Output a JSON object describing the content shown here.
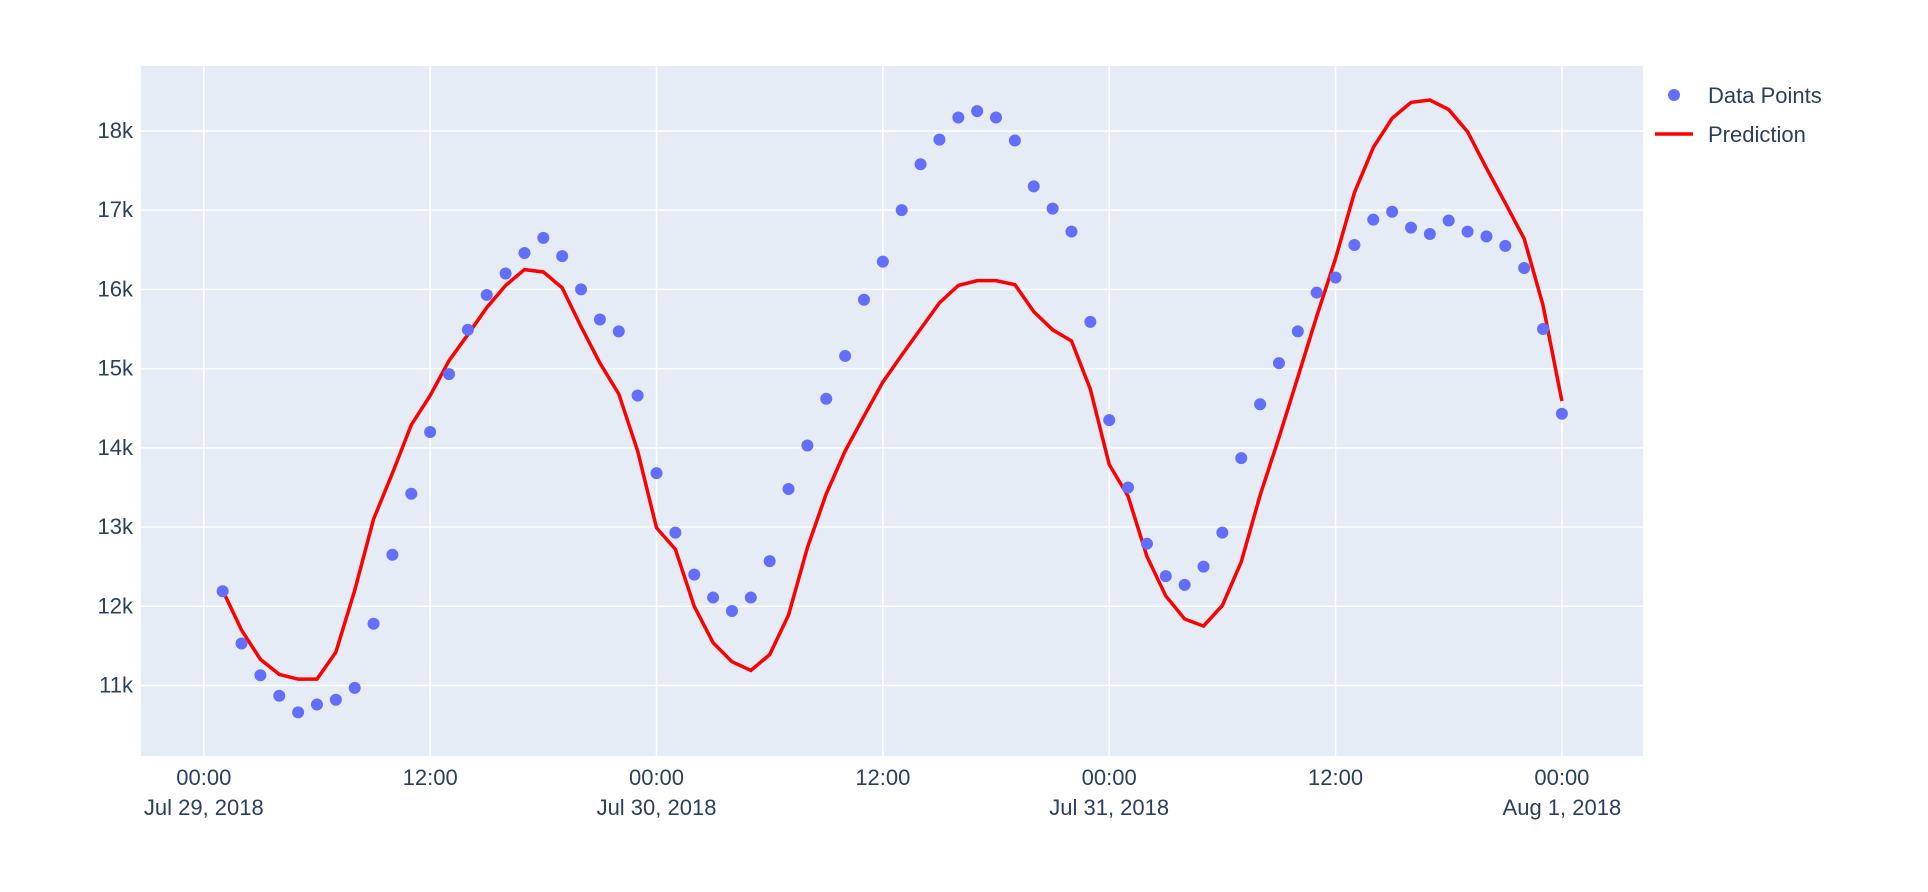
{
  "chart_data": {
    "type": "scatter+line",
    "title": "",
    "xlabel": "",
    "ylabel": "",
    "x_start": "2018-07-29 01:00",
    "x_step_hours": 1,
    "xlim_hours_from_jul29": [
      -3.33,
      76.3
    ],
    "ylim": [
      10110,
      18820
    ],
    "grid": true,
    "legend_placement": "top-right",
    "x_ticks": [
      {
        "h": 0,
        "l1": "00:00",
        "l2": "Jul 29, 2018"
      },
      {
        "h": 12,
        "l1": "12:00",
        "l2": ""
      },
      {
        "h": 24,
        "l1": "00:00",
        "l2": "Jul 30, 2018"
      },
      {
        "h": 36,
        "l1": "12:00",
        "l2": ""
      },
      {
        "h": 48,
        "l1": "00:00",
        "l2": "Jul 31, 2018"
      },
      {
        "h": 60,
        "l1": "12:00",
        "l2": ""
      },
      {
        "h": 72,
        "l1": "00:00",
        "l2": "Aug 1, 2018"
      }
    ],
    "y_ticks": [
      {
        "v": 11000,
        "l": "11k"
      },
      {
        "v": 12000,
        "l": "12k"
      },
      {
        "v": 13000,
        "l": "13k"
      },
      {
        "v": 14000,
        "l": "14k"
      },
      {
        "v": 15000,
        "l": "15k"
      },
      {
        "v": 16000,
        "l": "16k"
      },
      {
        "v": 17000,
        "l": "17k"
      },
      {
        "v": 18000,
        "l": "18k"
      }
    ],
    "series": [
      {
        "name": "Data Points",
        "mode": "markers",
        "color": "#636efa",
        "values": [
          12190,
          11530,
          11130,
          10870,
          10660,
          10760,
          10820,
          10970,
          11780,
          12650,
          13420,
          14200,
          14930,
          15490,
          15930,
          16200,
          16460,
          16650,
          16420,
          16000,
          15620,
          15470,
          14660,
          13680,
          12930,
          12400,
          12110,
          11940,
          12110,
          12570,
          13480,
          14030,
          14620,
          15160,
          15870,
          16350,
          17000,
          17580,
          17890,
          18170,
          18250,
          18170,
          17880,
          17300,
          17020,
          16730,
          15590,
          14350,
          13500,
          12790,
          12380,
          12270,
          12500,
          12930,
          13870,
          14550,
          15070,
          15470,
          15960,
          16150,
          16560,
          16880,
          16980,
          16780,
          16700,
          16870,
          16730,
          16670,
          16550,
          16270,
          15500,
          14430
        ]
      },
      {
        "name": "Prediction",
        "mode": "lines",
        "color": "#ff0000",
        "values": [
          12200,
          11700,
          11330,
          11140,
          11080,
          11080,
          11420,
          12200,
          13100,
          13680,
          14290,
          14660,
          15100,
          15430,
          15770,
          16050,
          16250,
          16220,
          16020,
          15530,
          15070,
          14680,
          13960,
          12990,
          12720,
          12000,
          11540,
          11300,
          11190,
          11390,
          11890,
          12740,
          13420,
          13960,
          14400,
          14830,
          15170,
          15500,
          15830,
          16050,
          16110,
          16110,
          16060,
          15720,
          15490,
          15350,
          14740,
          13790,
          13390,
          12630,
          12130,
          11840,
          11750,
          12010,
          12560,
          13400,
          14130,
          14890,
          15660,
          16390,
          17220,
          17790,
          18160,
          18360,
          18390,
          18270,
          17990,
          17530,
          17090,
          16640,
          15800,
          14590
        ]
      }
    ]
  }
}
